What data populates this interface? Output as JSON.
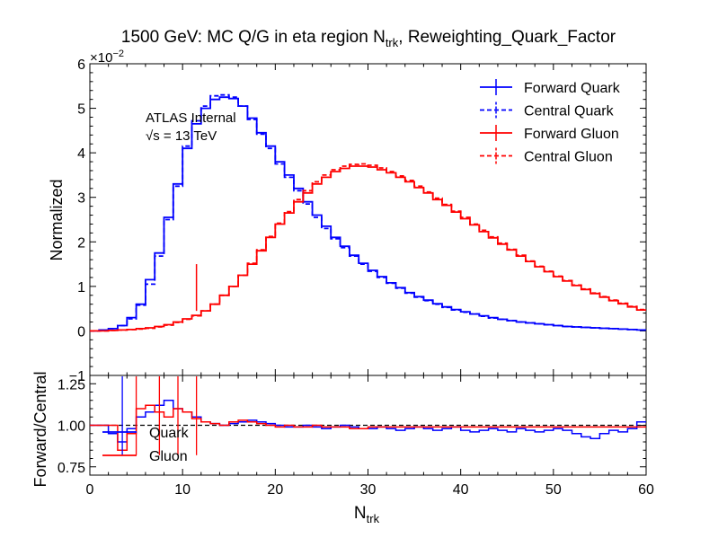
{
  "chart_data": {
    "type": "line",
    "title": "1500 GeV: MC Q/G in eta region N",
    "title_sub": "trk",
    "title_suffix": ", Reweighting_Quark_Factor",
    "annotations": [
      "ATLAS Internal",
      "√s = 13 TeV"
    ],
    "sci_multiplier": "×10",
    "sci_exponent": "−2",
    "xlabel": "N",
    "xlabel_sub": "trk",
    "xlim": [
      0,
      60
    ],
    "x_ticks": [
      "0",
      "10",
      "20",
      "30",
      "40",
      "50",
      "60"
    ],
    "top_panel": {
      "ylabel": "Normalized",
      "ylim": [
        -1,
        6
      ],
      "y_ticks": [
        "−1",
        "0",
        "1",
        "2",
        "3",
        "4",
        "5",
        "6"
      ],
      "bin_edges": [
        0,
        1,
        2,
        3,
        4,
        5,
        6,
        7,
        8,
        9,
        10,
        11,
        12,
        13,
        14,
        15,
        16,
        17,
        18,
        19,
        20,
        21,
        22,
        23,
        24,
        25,
        26,
        27,
        28,
        29,
        30,
        31,
        32,
        33,
        34,
        35,
        36,
        37,
        38,
        39,
        40,
        41,
        42,
        43,
        44,
        45,
        46,
        47,
        48,
        49,
        50,
        51,
        52,
        53,
        54,
        55,
        56,
        57,
        58,
        59,
        60
      ],
      "series": [
        {
          "name": "Forward Quark",
          "color": "#0000ff",
          "style": "solid",
          "values": [
            0,
            0.02,
            0.05,
            0.12,
            0.3,
            0.6,
            1.15,
            1.75,
            2.55,
            3.3,
            4.1,
            4.65,
            5.0,
            5.2,
            5.25,
            5.22,
            5.05,
            4.78,
            4.45,
            4.15,
            3.8,
            3.5,
            3.2,
            2.9,
            2.6,
            2.35,
            2.1,
            1.9,
            1.7,
            1.52,
            1.36,
            1.22,
            1.08,
            0.97,
            0.86,
            0.77,
            0.69,
            0.61,
            0.54,
            0.48,
            0.43,
            0.38,
            0.34,
            0.3,
            0.26,
            0.23,
            0.2,
            0.18,
            0.16,
            0.14,
            0.12,
            0.1,
            0.09,
            0.08,
            0.07,
            0.06,
            0.05,
            0.04,
            0.03,
            0.02
          ]
        },
        {
          "name": "Central Quark",
          "color": "#0000ff",
          "style": "dashed",
          "values": [
            0,
            0.02,
            0.05,
            0.12,
            0.27,
            0.58,
            1.05,
            1.68,
            2.5,
            3.25,
            4.15,
            4.72,
            5.05,
            5.28,
            5.3,
            5.25,
            5.05,
            4.75,
            4.42,
            4.1,
            3.75,
            3.45,
            3.15,
            2.85,
            2.55,
            2.3,
            2.07,
            1.87,
            1.68,
            1.5,
            1.34,
            1.2,
            1.07,
            0.96,
            0.85,
            0.76,
            0.68,
            0.6,
            0.53,
            0.47,
            0.42,
            0.38,
            0.33,
            0.29,
            0.26,
            0.23,
            0.2,
            0.18,
            0.16,
            0.14,
            0.12,
            0.1,
            0.09,
            0.08,
            0.07,
            0.06,
            0.05,
            0.04,
            0.03,
            0.02
          ]
        },
        {
          "name": "Forward Gluon",
          "color": "#ff0000",
          "style": "solid",
          "values": [
            0,
            0,
            0.01,
            0.02,
            0.03,
            0.05,
            0.07,
            0.1,
            0.14,
            0.2,
            0.27,
            0.35,
            0.45,
            0.6,
            0.8,
            1.0,
            1.25,
            1.5,
            1.8,
            2.1,
            2.4,
            2.65,
            2.9,
            3.1,
            3.3,
            3.45,
            3.58,
            3.65,
            3.7,
            3.7,
            3.68,
            3.62,
            3.55,
            3.45,
            3.35,
            3.22,
            3.1,
            2.95,
            2.82,
            2.67,
            2.52,
            2.38,
            2.23,
            2.09,
            1.95,
            1.82,
            1.68,
            1.56,
            1.44,
            1.33,
            1.22,
            1.12,
            1.02,
            0.93,
            0.84,
            0.76,
            0.68,
            0.61,
            0.54,
            0.47
          ]
        },
        {
          "name": "Central Gluon",
          "color": "#ff0000",
          "style": "dashed",
          "values": [
            0,
            0,
            0.01,
            0.02,
            0.03,
            0.04,
            0.06,
            0.09,
            0.13,
            0.19,
            0.26,
            0.34,
            0.45,
            0.6,
            0.8,
            1.0,
            1.25,
            1.52,
            1.82,
            2.12,
            2.42,
            2.68,
            2.95,
            3.15,
            3.35,
            3.5,
            3.62,
            3.7,
            3.74,
            3.75,
            3.72,
            3.66,
            3.58,
            3.48,
            3.38,
            3.25,
            3.12,
            2.98,
            2.84,
            2.69,
            2.55,
            2.4,
            2.26,
            2.11,
            1.97,
            1.83,
            1.7,
            1.57,
            1.45,
            1.34,
            1.23,
            1.13,
            1.03,
            0.94,
            0.85,
            0.77,
            0.69,
            0.62,
            0.55,
            0.48
          ]
        }
      ]
    },
    "bottom_panel": {
      "ylabel": "Forward/Central",
      "ylim": [
        0.7,
        1.3
      ],
      "y_ticks": [
        "0.75",
        "1.00",
        "1.25"
      ],
      "reference_line": 1.0,
      "labels": [
        "Quark",
        "Gluon"
      ],
      "series": [
        {
          "name": "Quark",
          "color": "#0000ff",
          "values": [
            1.0,
            1.0,
            0.95,
            0.9,
            0.98,
            1.05,
            1.08,
            1.12,
            1.15,
            1.1,
            1.08,
            1.05,
            1.02,
            1.01,
            1.0,
            1.01,
            1.02,
            1.03,
            1.02,
            1.01,
            1.0,
            0.99,
            0.99,
            1.0,
            0.99,
            0.98,
            0.99,
            1.0,
            0.99,
            0.98,
            0.98,
            0.99,
            0.98,
            0.97,
            0.98,
            0.99,
            0.98,
            0.97,
            0.98,
            0.99,
            0.97,
            0.96,
            0.97,
            0.98,
            0.97,
            0.96,
            0.98,
            0.97,
            0.96,
            0.97,
            0.98,
            0.97,
            0.95,
            0.93,
            0.92,
            0.95,
            0.97,
            0.96,
            0.98,
            1.02
          ]
        },
        {
          "name": "Gluon",
          "color": "#ff0000",
          "values": [
            1.0,
            1.0,
            1.0,
            0.85,
            0.95,
            1.1,
            1.12,
            1.08,
            1.05,
            1.1,
            1.08,
            1.04,
            1.02,
            1.01,
            1.0,
            1.02,
            1.03,
            1.02,
            1.01,
            1.0,
            0.99,
            1.0,
            0.99,
            0.99,
            1.0,
            0.99,
            0.99,
            0.99,
            0.98,
            0.98,
            0.99,
            0.99,
            0.99,
            0.99,
            0.99,
            0.99,
            0.99,
            0.99,
            0.99,
            0.99,
            0.99,
            0.99,
            0.99,
            0.99,
            0.99,
            0.99,
            0.99,
            0.99,
            0.99,
            0.99,
            0.99,
            0.99,
            0.99,
            0.99,
            0.99,
            0.99,
            0.99,
            0.99,
            0.99,
            0.99
          ]
        }
      ]
    },
    "legend": {
      "position": "top-right",
      "entries": [
        {
          "label": "Forward Quark",
          "color": "#0000ff",
          "style": "solid"
        },
        {
          "label": "Central Quark",
          "color": "#0000ff",
          "style": "dashed"
        },
        {
          "label": "Forward Gluon",
          "color": "#ff0000",
          "style": "solid"
        },
        {
          "label": "Central Gluon",
          "color": "#ff0000",
          "style": "dashed"
        }
      ]
    }
  }
}
